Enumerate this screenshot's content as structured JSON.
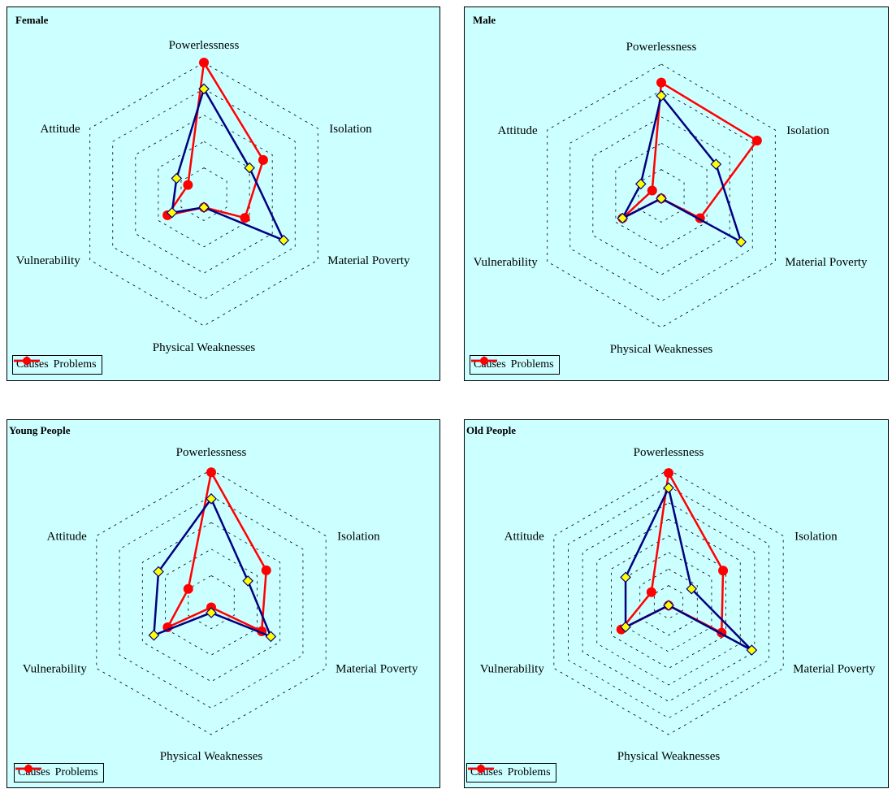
{
  "colors": {
    "background": "#ccffff",
    "causes": "#000080",
    "problems": "#ff0000",
    "marker_causes": "#ffff00",
    "grid": "#000000"
  },
  "legend": {
    "causes": "Causes",
    "problems": "Problems"
  },
  "chart_data": [
    {
      "type": "radar",
      "title": "Female",
      "categories": [
        "Powerlessness",
        "Isolation",
        "Material Poverty",
        "Physical Weaknesses",
        "Vulnerability",
        "Attitude"
      ],
      "rmax": 5,
      "grid_rings": 5,
      "series": [
        {
          "name": "Causes",
          "values": [
            4.0,
            2.0,
            3.5,
            0.5,
            1.4,
            1.2
          ]
        },
        {
          "name": "Problems",
          "values": [
            5.0,
            2.6,
            1.8,
            0.5,
            1.6,
            0.7
          ]
        }
      ]
    },
    {
      "type": "radar",
      "title": "Male",
      "categories": [
        "Powerlessness",
        "Isolation",
        "Material Poverty",
        "Physical Weaknesses",
        "Vulnerability",
        "Attitude"
      ],
      "rmax": 5,
      "grid_rings": 5,
      "series": [
        {
          "name": "Causes",
          "values": [
            3.8,
            2.4,
            3.5,
            0.1,
            1.7,
            0.9
          ]
        },
        {
          "name": "Problems",
          "values": [
            4.3,
            4.2,
            1.7,
            0.1,
            1.7,
            0.4
          ]
        }
      ]
    },
    {
      "type": "radar",
      "title": "Young People",
      "categories": [
        "Powerlessness",
        "Isolation",
        "Material Poverty",
        "Physical Weaknesses",
        "Vulnerability",
        "Attitude"
      ],
      "rmax": 5,
      "grid_rings": 5,
      "series": [
        {
          "name": "Causes",
          "values": [
            3.9,
            1.6,
            2.6,
            0.4,
            2.5,
            2.3
          ]
        },
        {
          "name": "Problems",
          "values": [
            4.9,
            2.4,
            2.2,
            0.2,
            1.9,
            1.0
          ]
        }
      ]
    },
    {
      "type": "radar",
      "title": "Old People",
      "categories": [
        "Powerlessness",
        "Isolation",
        "Material Poverty",
        "Physical Weaknesses",
        "Vulnerability",
        "Attitude"
      ],
      "rmax": 8,
      "grid_rings": 8,
      "series": [
        {
          "name": "Causes",
          "values": [
            6.9,
            1.6,
            5.8,
            0.2,
            3.0,
            3.0
          ]
        },
        {
          "name": "Problems",
          "values": [
            7.8,
            3.8,
            3.7,
            0.2,
            3.3,
            1.2
          ]
        }
      ]
    }
  ]
}
